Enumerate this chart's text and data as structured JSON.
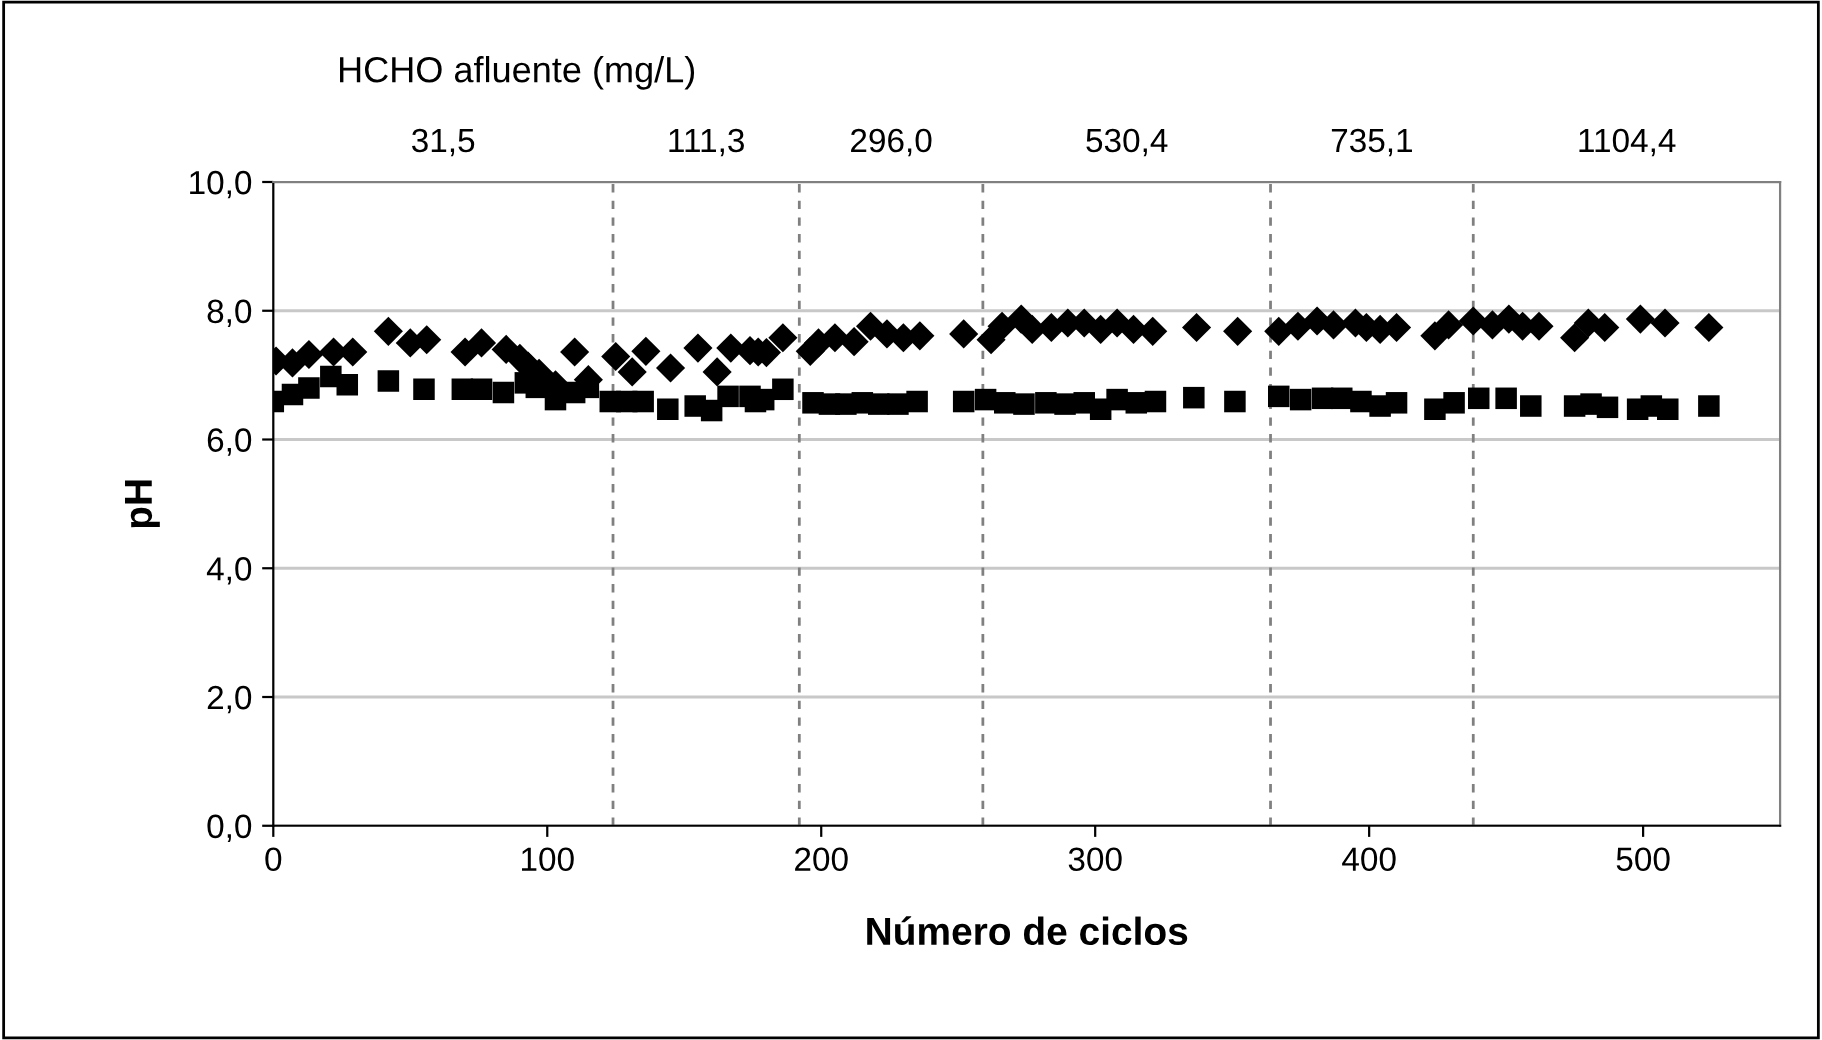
{
  "chart_data": {
    "type": "scatter",
    "xlabel": "Número de ciclos",
    "ylabel": "pH",
    "xlim": [
      0,
      550
    ],
    "xticks": [
      0,
      100,
      200,
      300,
      400,
      500
    ],
    "ylim": [
      0,
      10
    ],
    "yticks": [
      {
        "value": 0,
        "label": "0,0"
      },
      {
        "value": 2,
        "label": "2,0"
      },
      {
        "value": 4,
        "label": "4,0"
      },
      {
        "value": 6,
        "label": "6,0"
      },
      {
        "value": 8,
        "label": "8,0"
      },
      {
        "value": 10,
        "label": "10,0"
      }
    ],
    "annotations": [
      "HCHO afluente (mg/L)",
      "31,5",
      "111,3",
      "296,0",
      "530,4",
      "735,1",
      "1104,4"
    ],
    "grid": "y",
    "legend": false,
    "ref_lines": [
      {
        "axis": "x",
        "value": 124,
        "color": "#808080",
        "line_style": "dashed"
      },
      {
        "axis": "x",
        "value": 192,
        "color": "#808080",
        "line_style": "dashed"
      },
      {
        "axis": "x",
        "value": 259,
        "color": "#808080",
        "line_style": "dashed"
      },
      {
        "axis": "x",
        "value": 364,
        "color": "#808080",
        "line_style": "dashed"
      },
      {
        "axis": "x",
        "value": 438,
        "color": "#808080",
        "line_style": "dashed"
      }
    ],
    "series": [
      {
        "color": "#000000",
        "marker": "diamond",
        "x": [
          1,
          7,
          13,
          22,
          29,
          42,
          50,
          56,
          70,
          76,
          85,
          90,
          93,
          97,
          103,
          110,
          115,
          125,
          131,
          136,
          145,
          155,
          162,
          167,
          174,
          177,
          180,
          186,
          196,
          199,
          205,
          212,
          218,
          224,
          230,
          236,
          252,
          262,
          266,
          273,
          277,
          284,
          290,
          296,
          302,
          308,
          314,
          321,
          337,
          352,
          367,
          374,
          381,
          387,
          395,
          399,
          404,
          410,
          424,
          429,
          438,
          445,
          451,
          456,
          462,
          475,
          480,
          486,
          499,
          508,
          524
        ],
        "values": [
          7.22,
          7.19,
          7.32,
          7.36,
          7.36,
          7.68,
          7.5,
          7.55,
          7.36,
          7.5,
          7.4,
          7.26,
          7.14,
          7.03,
          6.85,
          7.36,
          6.93,
          7.29,
          7.05,
          7.37,
          7.11,
          7.42,
          7.05,
          7.42,
          7.38,
          7.36,
          7.35,
          7.58,
          7.37,
          7.5,
          7.58,
          7.52,
          7.76,
          7.64,
          7.58,
          7.61,
          7.64,
          7.55,
          7.76,
          7.87,
          7.71,
          7.74,
          7.81,
          7.81,
          7.71,
          7.81,
          7.71,
          7.68,
          7.74,
          7.68,
          7.68,
          7.76,
          7.84,
          7.78,
          7.81,
          7.74,
          7.71,
          7.74,
          7.61,
          7.78,
          7.84,
          7.78,
          7.87,
          7.76,
          7.76,
          7.58,
          7.81,
          7.74,
          7.87,
          7.81,
          7.74
        ]
      },
      {
        "color": "#000000",
        "marker": "square",
        "x": [
          0,
          7,
          13,
          21,
          27,
          42,
          55,
          69,
          76,
          84,
          92,
          96,
          103,
          110,
          115,
          123,
          129,
          135,
          144,
          154,
          160,
          166,
          174,
          176,
          179,
          186,
          197,
          203,
          209,
          215,
          221,
          228,
          235,
          252,
          260,
          267,
          274,
          282,
          289,
          296,
          302,
          308,
          315,
          322,
          336,
          351,
          367,
          375,
          383,
          390,
          397,
          404,
          410,
          424,
          431,
          440,
          450,
          459,
          475,
          481,
          487,
          498,
          503,
          509,
          524
        ],
        "values": [
          6.59,
          6.7,
          6.8,
          6.98,
          6.85,
          6.91,
          6.78,
          6.78,
          6.78,
          6.73,
          6.88,
          6.81,
          6.62,
          6.73,
          6.81,
          6.59,
          6.59,
          6.59,
          6.47,
          6.52,
          6.45,
          6.67,
          6.67,
          6.59,
          6.62,
          6.78,
          6.57,
          6.55,
          6.55,
          6.57,
          6.55,
          6.55,
          6.59,
          6.59,
          6.62,
          6.57,
          6.55,
          6.57,
          6.55,
          6.57,
          6.47,
          6.62,
          6.57,
          6.59,
          6.65,
          6.59,
          6.67,
          6.62,
          6.64,
          6.64,
          6.59,
          6.52,
          6.57,
          6.47,
          6.57,
          6.64,
          6.64,
          6.52,
          6.52,
          6.55,
          6.5,
          6.47,
          6.52,
          6.47,
          6.52
        ]
      }
    ]
  }
}
